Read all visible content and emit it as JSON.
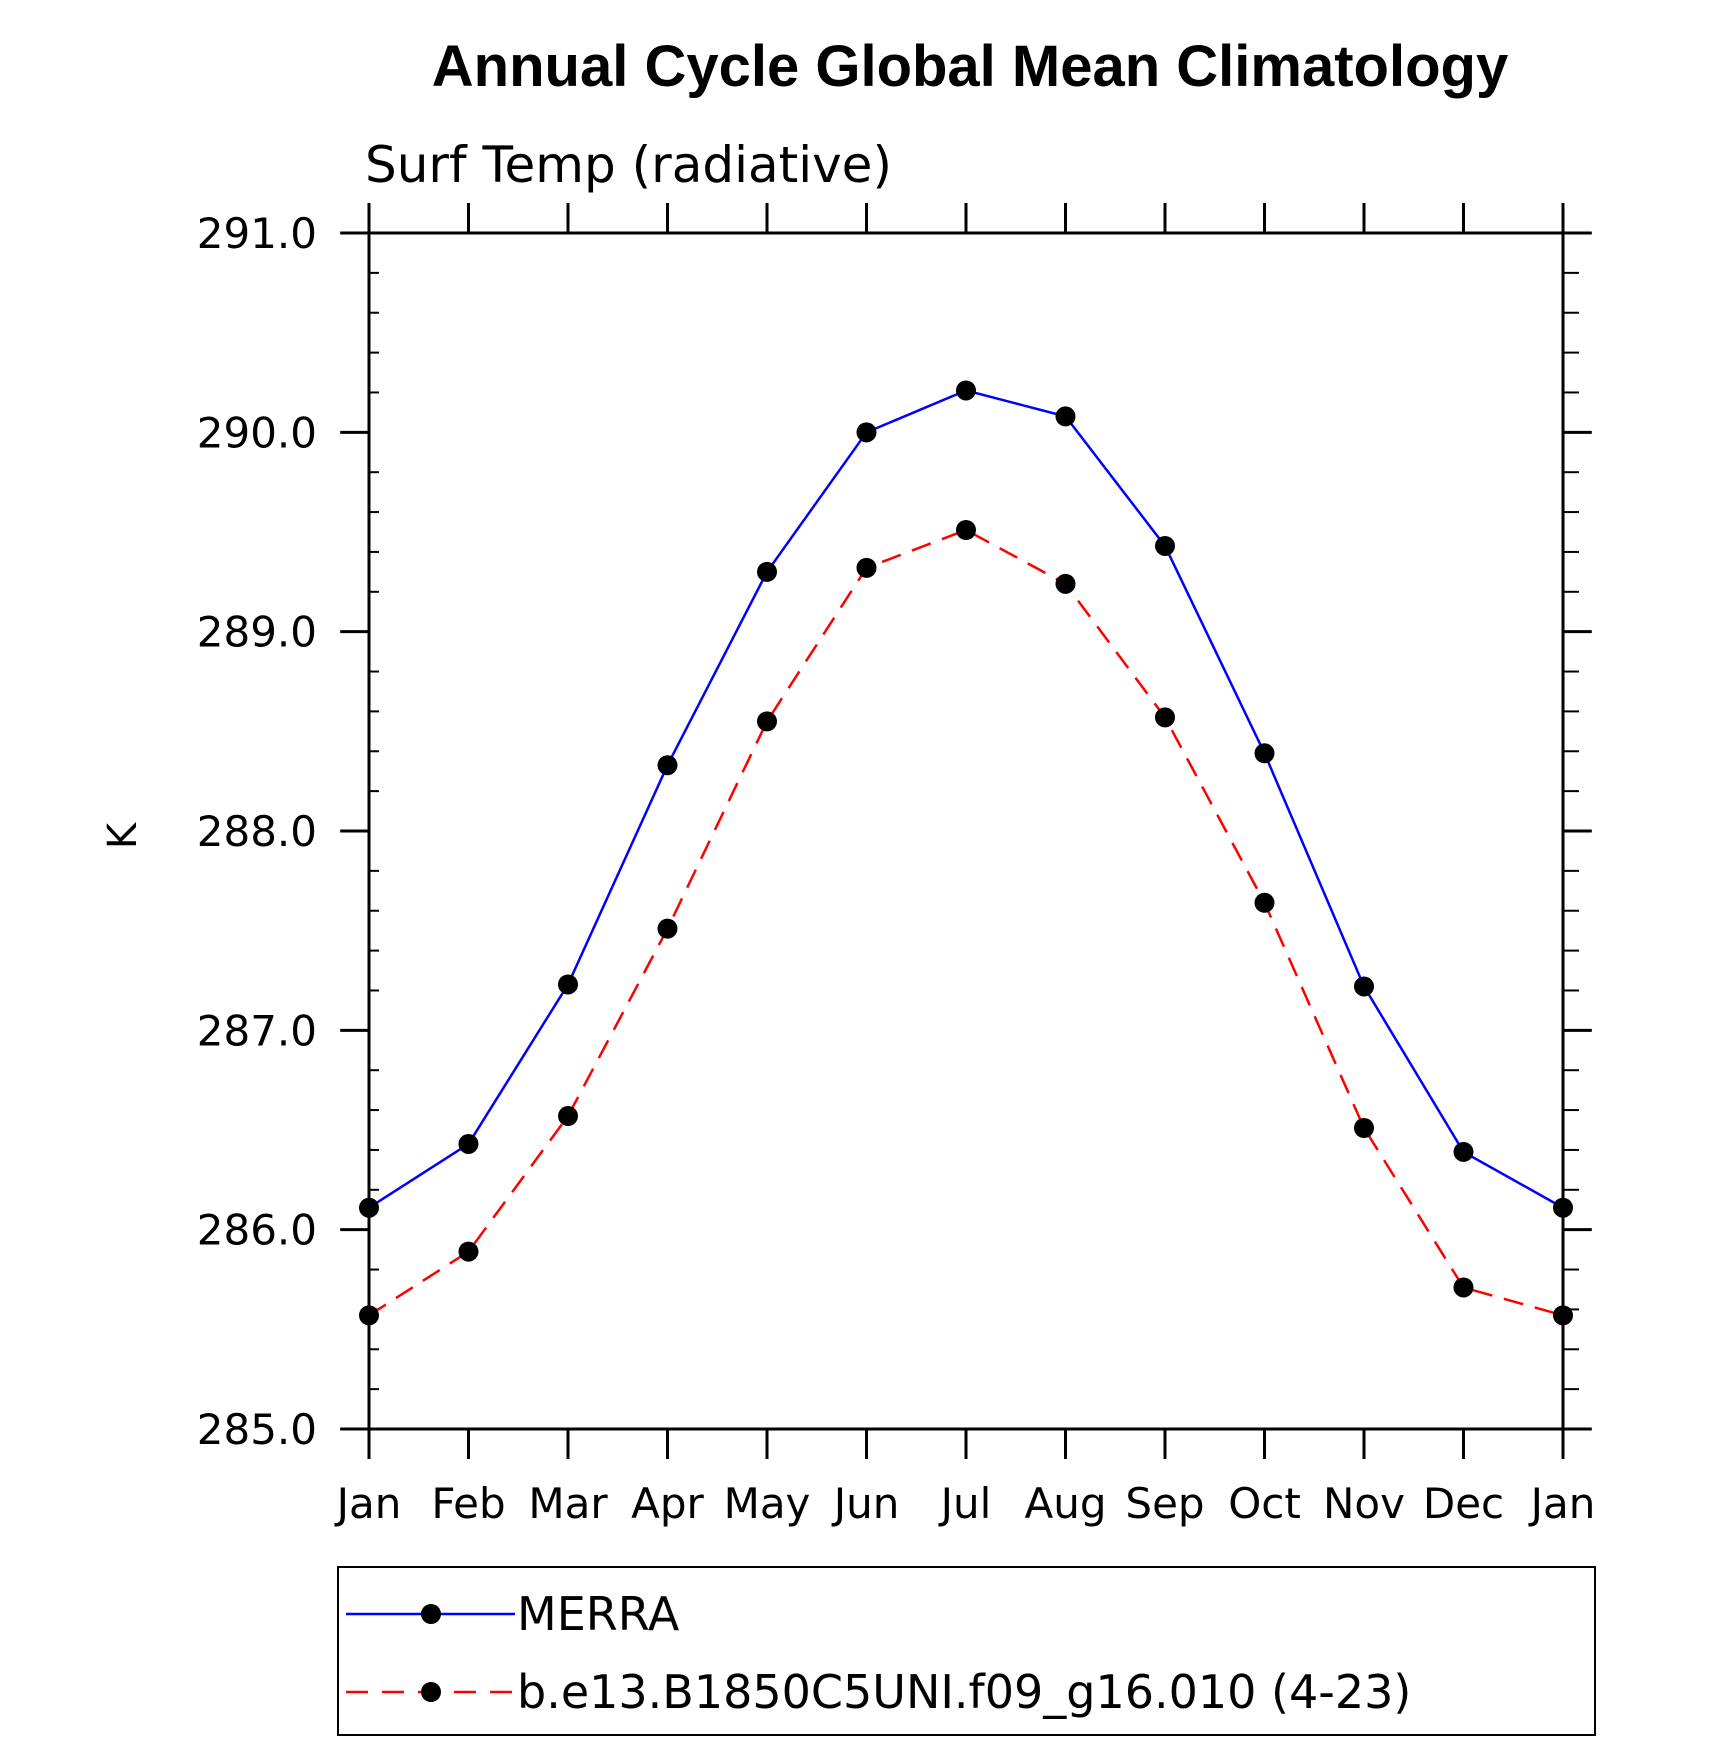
{
  "chart_data": {
    "type": "line",
    "title": "Annual Cycle Global Mean Climatology",
    "subtitle": "Surf Temp (radiative)",
    "xlabel": "",
    "ylabel": "K",
    "categories": [
      "Jan",
      "Feb",
      "Mar",
      "Apr",
      "May",
      "Jun",
      "Jul",
      "Aug",
      "Sep",
      "Oct",
      "Nov",
      "Dec",
      "Jan"
    ],
    "ylim": [
      285.0,
      291.0
    ],
    "yticks": [
      "285.0",
      "286.0",
      "287.0",
      "288.0",
      "289.0",
      "290.0",
      "291.0"
    ],
    "grid": false,
    "legend_position": "bottom",
    "series": [
      {
        "name": "MERRA",
        "color": "#0000ff",
        "line_style": "solid",
        "marker": "filled-circle",
        "values": [
          286.11,
          286.43,
          287.23,
          288.33,
          289.3,
          290.0,
          290.21,
          290.08,
          289.43,
          288.39,
          287.22,
          286.39,
          286.11
        ]
      },
      {
        "name": "b.e13.B1850C5UNI.f09_g16.010 (4-23)",
        "color": "#ff0000",
        "line_style": "dashed",
        "marker": "filled-circle",
        "values": [
          285.57,
          285.89,
          286.57,
          287.51,
          288.55,
          289.32,
          289.51,
          289.24,
          288.57,
          287.64,
          286.51,
          285.71,
          285.57
        ]
      }
    ]
  }
}
